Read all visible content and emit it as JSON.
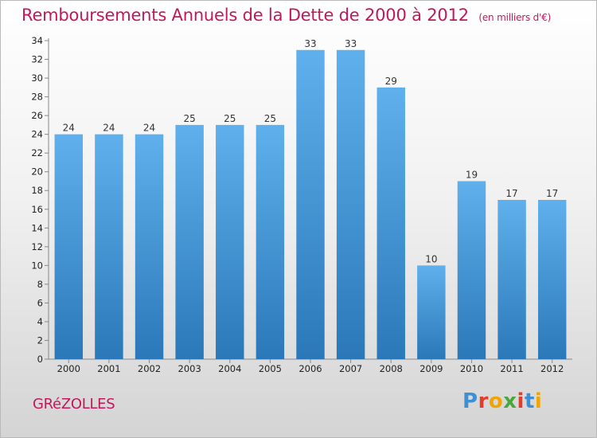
{
  "title": "Remboursements Annuels de la Dette de 2000 à 2012",
  "unit_note": "(en milliers d'€)",
  "town": "GRéZOLLES",
  "logo_text": "Proxiti",
  "colors": {
    "title": "#c2185b",
    "bar_top": "#5fb0ec",
    "bar_bottom": "#2b78b9",
    "logo": [
      "#3f8fd4",
      "#e23c2f",
      "#f2a400",
      "#4aa83b",
      "#e23c2f",
      "#3f8fd4",
      "#f2a400"
    ]
  },
  "chart_data": {
    "type": "bar",
    "title": "Remboursements Annuels de la Dette de 2000 à 2012",
    "categories": [
      "2000",
      "2001",
      "2002",
      "2003",
      "2004",
      "2005",
      "2006",
      "2007",
      "2008",
      "2009",
      "2010",
      "2011",
      "2012"
    ],
    "values": [
      24,
      24,
      24,
      25,
      25,
      25,
      33,
      33,
      29,
      10,
      19,
      17,
      17
    ],
    "xlabel": "",
    "ylabel": "",
    "ylim": [
      0,
      34
    ],
    "yticks": [
      0,
      2,
      4,
      6,
      8,
      10,
      12,
      14,
      16,
      18,
      20,
      22,
      24,
      26,
      28,
      30,
      32,
      34
    ],
    "grid": false,
    "data_labels": true
  }
}
